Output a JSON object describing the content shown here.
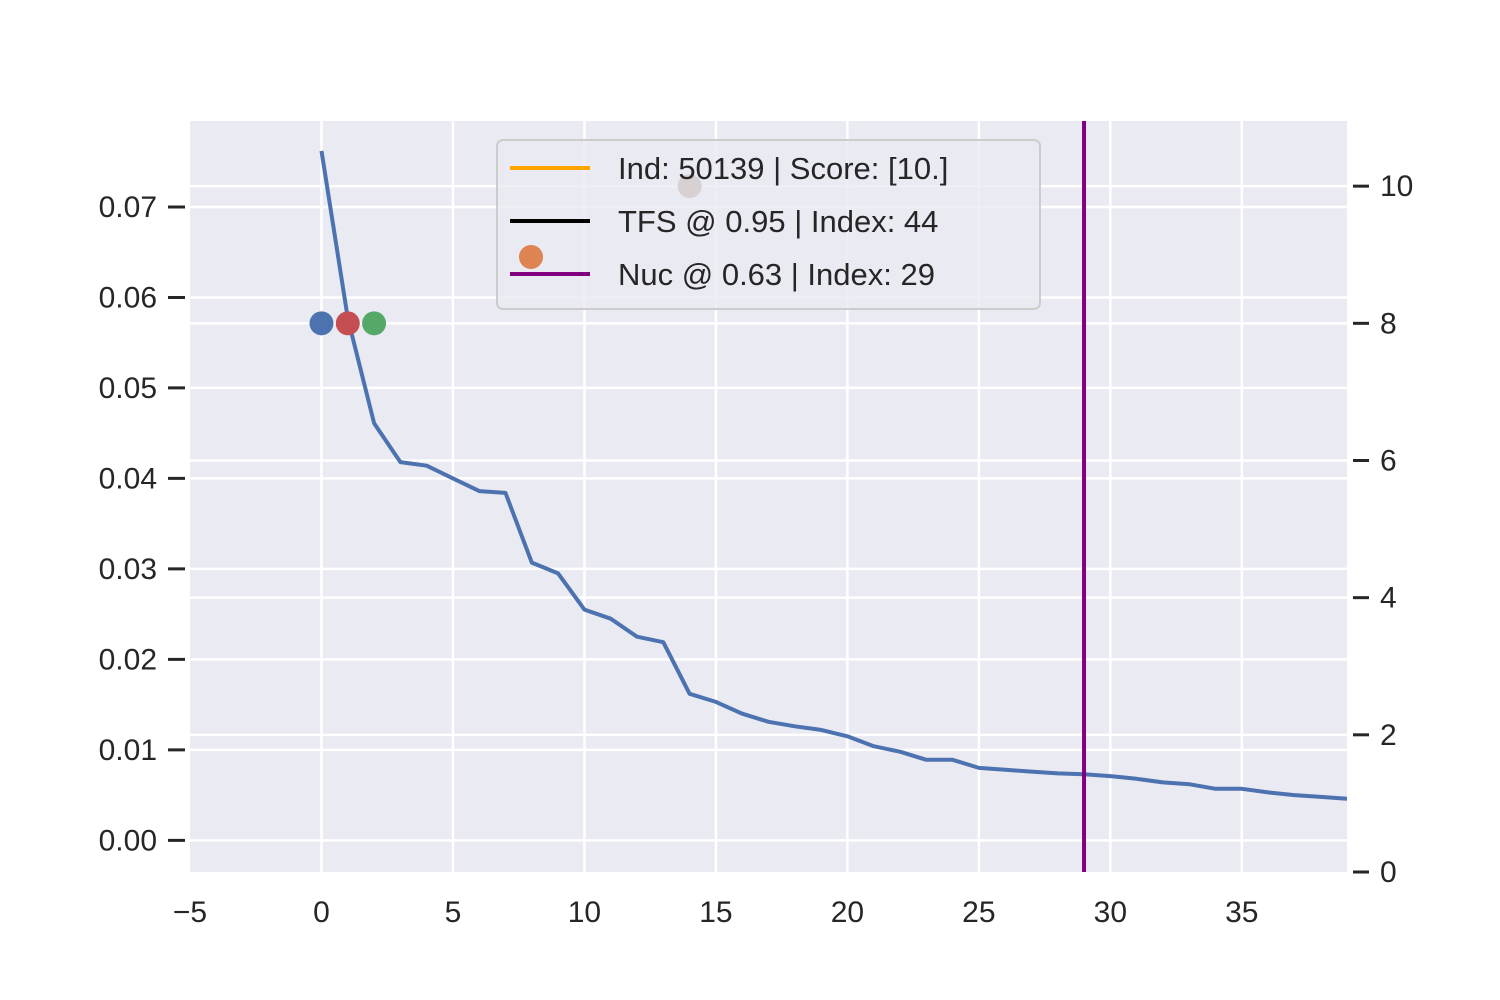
{
  "chart_data": {
    "type": "line",
    "title": "",
    "xlabel": "",
    "ylabel": "",
    "xlim": [
      -5,
      39
    ],
    "ylim_left": [
      -0.0035,
      0.0795
    ],
    "ylim_right": [
      0,
      10.95
    ],
    "grid": true,
    "x_ticks": [
      -5,
      0,
      5,
      10,
      15,
      20,
      25,
      30,
      35
    ],
    "x_tick_labels": [
      "−5",
      "0",
      "5",
      "10",
      "15",
      "20",
      "25",
      "30",
      "35"
    ],
    "y_left_ticks": [
      0.0,
      0.01,
      0.02,
      0.03,
      0.04,
      0.05,
      0.06,
      0.07
    ],
    "y_left_tick_labels": [
      "0.00",
      "0.01",
      "0.02",
      "0.03",
      "0.04",
      "0.05",
      "0.06",
      "0.07"
    ],
    "y_right_ticks": [
      0,
      2,
      4,
      6,
      8,
      10
    ],
    "y_right_tick_labels": [
      "0",
      "2",
      "4",
      "6",
      "8",
      "10"
    ],
    "series": [
      {
        "color": "#4c72b0",
        "axis": "left",
        "x": [
          0,
          1,
          2,
          3,
          4,
          5,
          6,
          7,
          8,
          9,
          10,
          11,
          12,
          13,
          14,
          15,
          16,
          17,
          18,
          19,
          20,
          21,
          22,
          23,
          24,
          25,
          26,
          27,
          28,
          29,
          30,
          31,
          32,
          33,
          34,
          35,
          36,
          37,
          38,
          39
        ],
        "values": [
          0.0762,
          0.0577,
          0.0461,
          0.0418,
          0.0414,
          0.04,
          0.0386,
          0.0384,
          0.0307,
          0.0295,
          0.0255,
          0.0245,
          0.0225,
          0.0219,
          0.0162,
          0.0153,
          0.014,
          0.0131,
          0.0126,
          0.0122,
          0.0115,
          0.0104,
          0.0098,
          0.0089,
          0.0089,
          0.008,
          0.0078,
          0.0076,
          0.0074,
          0.0073,
          0.0071,
          0.0068,
          0.0064,
          0.0062,
          0.0057,
          0.0057,
          0.0053,
          0.005,
          0.0048,
          0.0046
        ]
      }
    ],
    "vlines": [
      {
        "x": 29,
        "color": "#800080"
      }
    ],
    "points": [
      {
        "x": 0,
        "y": 8,
        "color": "#4c72b0",
        "axis": "right"
      },
      {
        "x": 1,
        "y": 8,
        "color": "#c44e52",
        "axis": "right"
      },
      {
        "x": 2,
        "y": 8,
        "color": "#55a868",
        "axis": "right"
      },
      {
        "x": 14,
        "y": 10,
        "color": "#8c7158",
        "axis": "right"
      }
    ],
    "legend": {
      "placement": "upper-center",
      "entries": [
        {
          "label": "Ind: 50139 | Score: [10.]",
          "color": "#ffa500",
          "marker": "line"
        },
        {
          "label": "TFS @ 0.95 | Index: 44",
          "color": "#000000",
          "marker": "line"
        },
        {
          "label": "Nuc @ 0.63 | Index: 29",
          "color": "#800080",
          "marker": "line"
        }
      ],
      "extra_marker_color": "#dd8452"
    }
  }
}
